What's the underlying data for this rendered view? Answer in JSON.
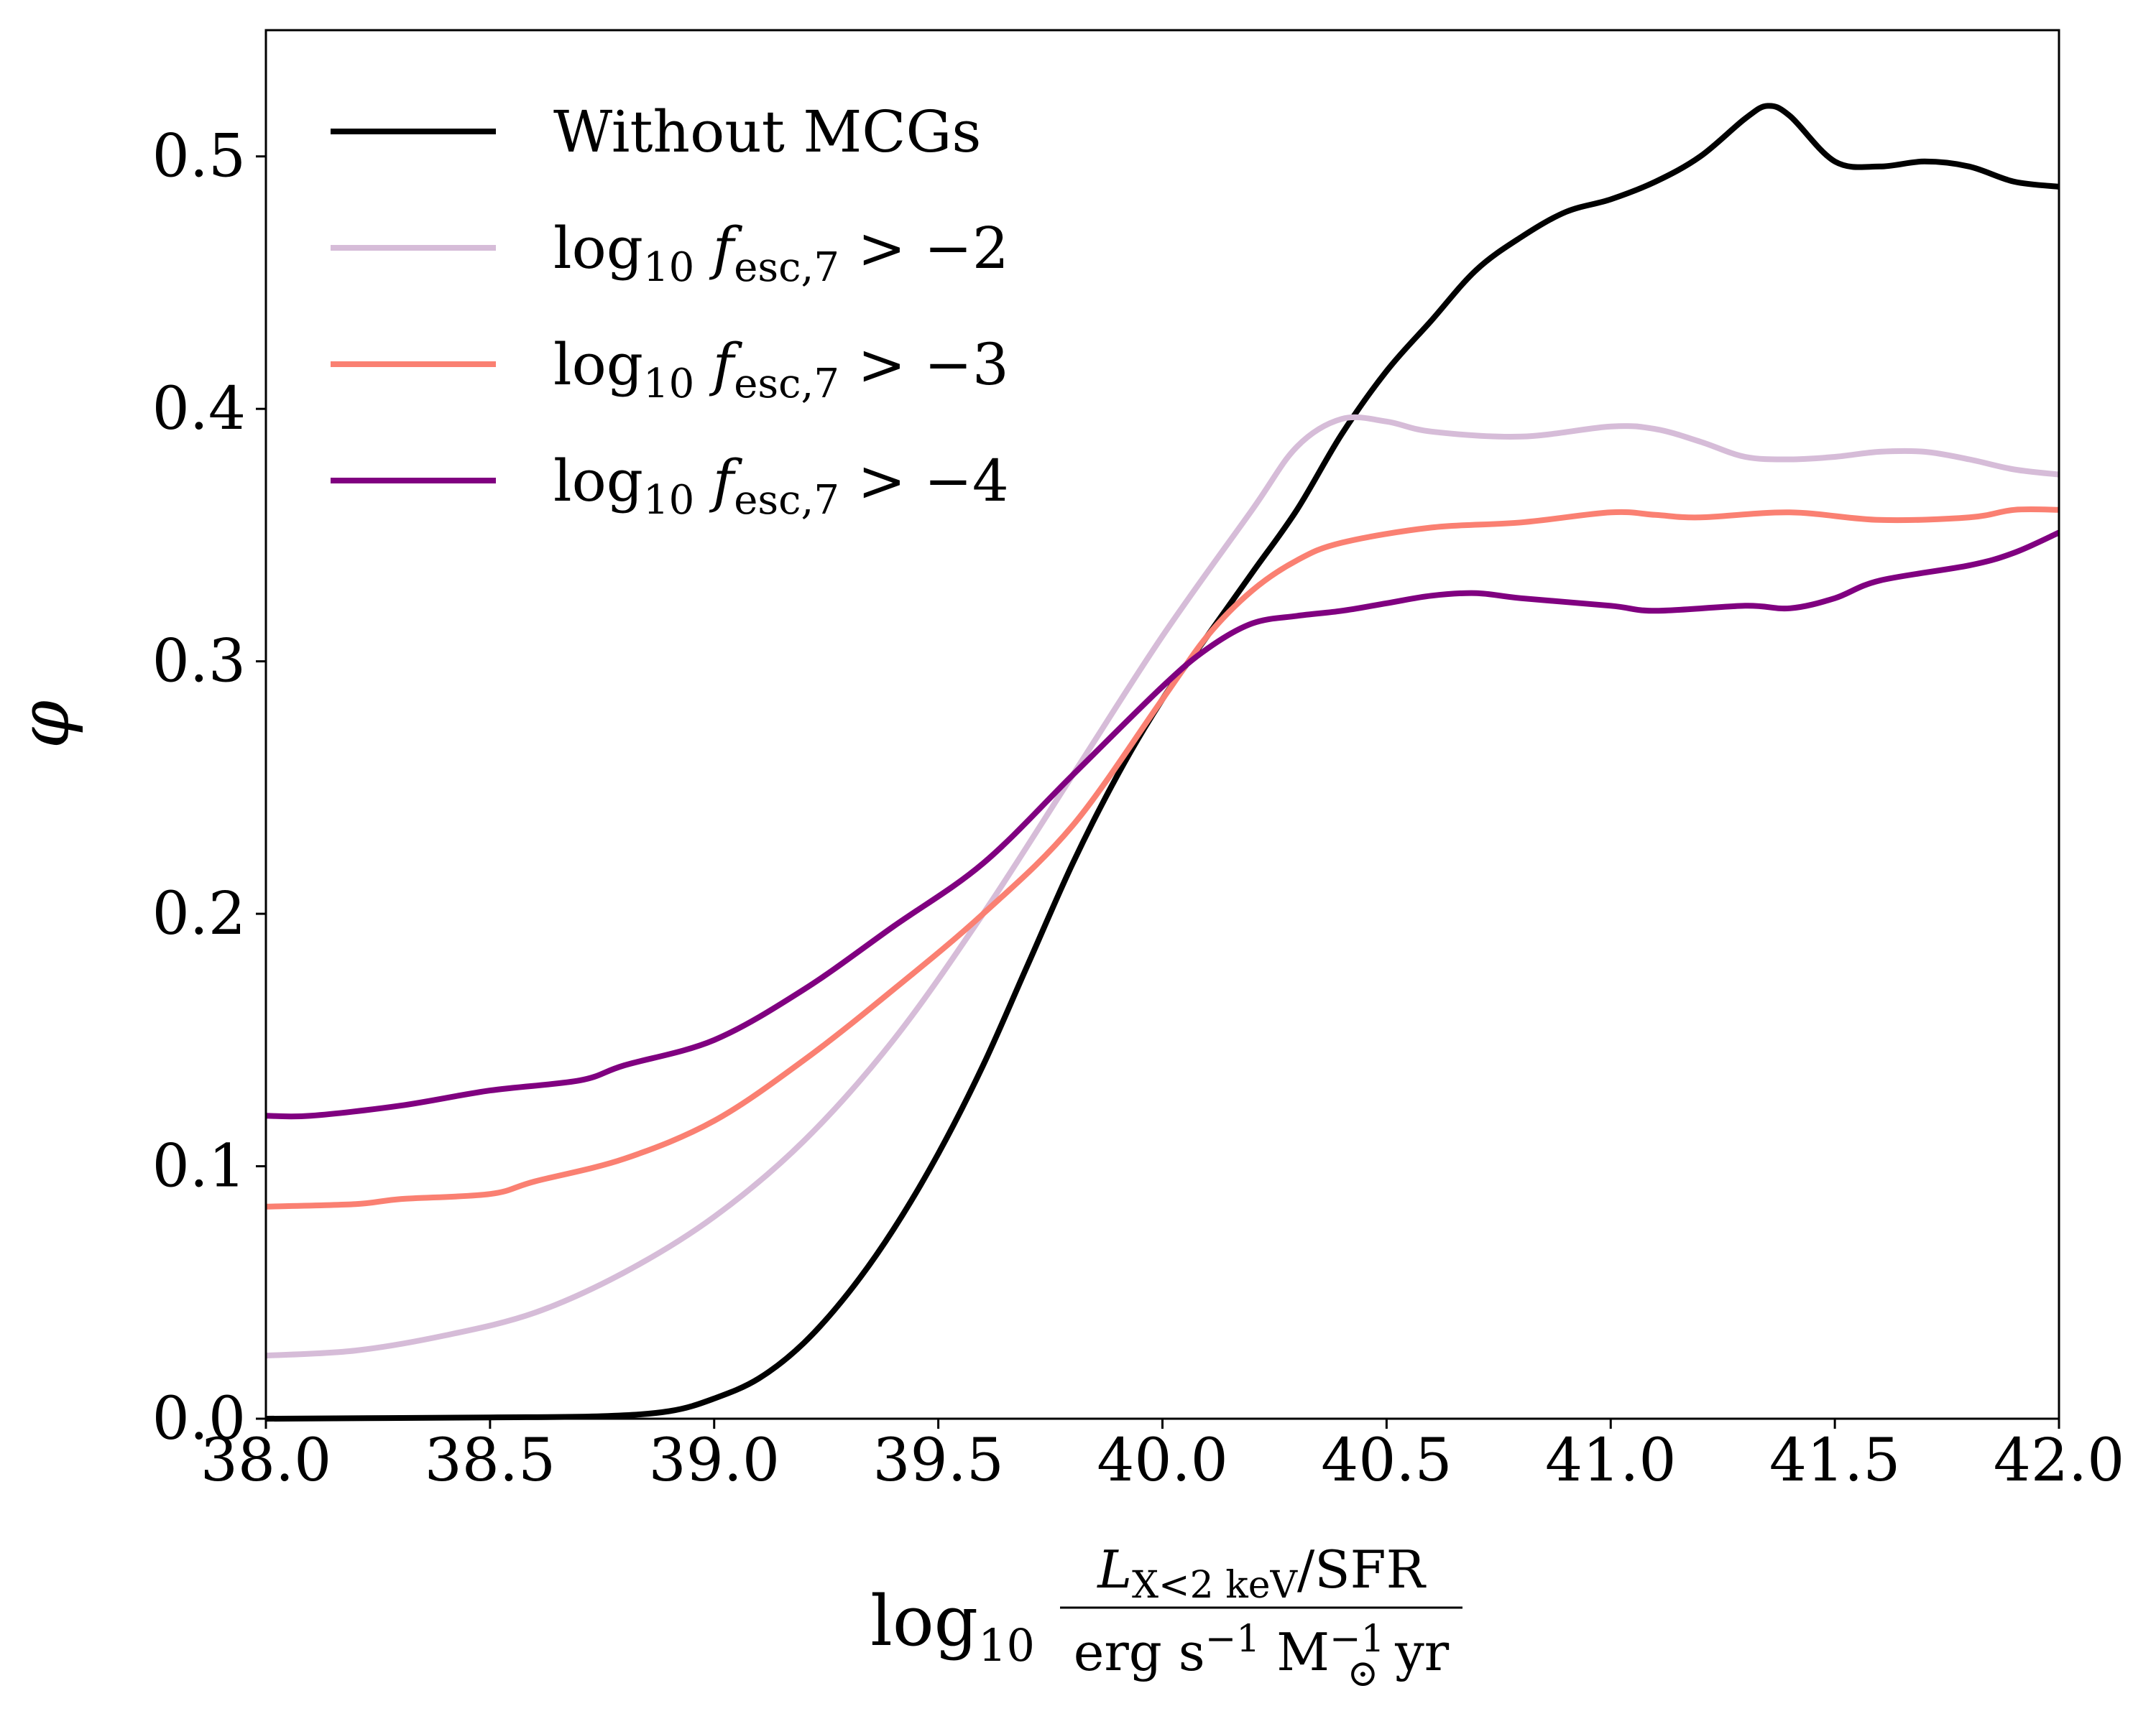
{
  "chart_data": {
    "type": "line",
    "xlabel": "log10 L_{X<2keV}/SFR / erg s^-1 M_⊙^-1 yr",
    "xlabel_parts": {
      "prefix": "log",
      "prefix_sub": "10",
      "numerator_main": "L",
      "numerator_sub": "X<2 keV",
      "numerator_rest": "/SFR",
      "denominator": "erg s",
      "denominator_sup1": "−1",
      "denominator_msun": " M",
      "denominator_sup2": "−1",
      "denominator_sub2": "⊙",
      "denominator_rest": " yr"
    },
    "ylabel": "φ",
    "xlim": [
      38.0,
      42.0
    ],
    "ylim": [
      0.0,
      0.55
    ],
    "x_ticks": [
      38.0,
      38.5,
      39.0,
      39.5,
      40.0,
      40.5,
      41.0,
      41.5,
      42.0
    ],
    "x_tick_labels": [
      "38.0",
      "38.5",
      "39.0",
      "39.5",
      "40.0",
      "40.5",
      "41.0",
      "41.5",
      "42.0"
    ],
    "y_ticks": [
      0.0,
      0.1,
      0.2,
      0.3,
      0.4,
      0.5
    ],
    "y_tick_labels": [
      "0.0",
      "0.1",
      "0.2",
      "0.3",
      "0.4",
      "0.5"
    ],
    "grid": false,
    "legend_position": "top-left",
    "series": [
      {
        "name": "Without MCGs",
        "name_parts": {
          "main": "Without MCGs"
        },
        "color": "#000000",
        "points": [
          [
            38.0,
            0.0
          ],
          [
            38.5,
            0.0005
          ],
          [
            38.75,
            0.001
          ],
          [
            38.9,
            0.003
          ],
          [
            39.0,
            0.008
          ],
          [
            39.1,
            0.016
          ],
          [
            39.2,
            0.03
          ],
          [
            39.3,
            0.05
          ],
          [
            39.4,
            0.075
          ],
          [
            39.5,
            0.105
          ],
          [
            39.6,
            0.14
          ],
          [
            39.7,
            0.18
          ],
          [
            39.8,
            0.22
          ],
          [
            39.9,
            0.255
          ],
          [
            40.0,
            0.285
          ],
          [
            40.1,
            0.31
          ],
          [
            40.2,
            0.335
          ],
          [
            40.3,
            0.36
          ],
          [
            40.4,
            0.39
          ],
          [
            40.5,
            0.415
          ],
          [
            40.6,
            0.435
          ],
          [
            40.7,
            0.455
          ],
          [
            40.8,
            0.468
          ],
          [
            40.9,
            0.478
          ],
          [
            41.0,
            0.483
          ],
          [
            41.1,
            0.49
          ],
          [
            41.2,
            0.5
          ],
          [
            41.3,
            0.515
          ],
          [
            41.35,
            0.52
          ],
          [
            41.4,
            0.516
          ],
          [
            41.5,
            0.498
          ],
          [
            41.6,
            0.496
          ],
          [
            41.7,
            0.498
          ],
          [
            41.8,
            0.496
          ],
          [
            41.9,
            0.49
          ],
          [
            42.0,
            0.488
          ]
        ]
      },
      {
        "name": "log10 f_esc,7 > −2",
        "name_parts": {
          "main": "log",
          "sub1": "10",
          "italic": " f",
          "sub2": "esc,7",
          "rest": " > −2"
        },
        "color": "#d6bcd8",
        "points": [
          [
            38.0,
            0.025
          ],
          [
            38.2,
            0.027
          ],
          [
            38.4,
            0.033
          ],
          [
            38.6,
            0.042
          ],
          [
            38.8,
            0.058
          ],
          [
            39.0,
            0.08
          ],
          [
            39.2,
            0.11
          ],
          [
            39.4,
            0.15
          ],
          [
            39.6,
            0.2
          ],
          [
            39.8,
            0.255
          ],
          [
            40.0,
            0.31
          ],
          [
            40.2,
            0.36
          ],
          [
            40.3,
            0.385
          ],
          [
            40.4,
            0.396
          ],
          [
            40.5,
            0.395
          ],
          [
            40.6,
            0.391
          ],
          [
            40.8,
            0.389
          ],
          [
            41.0,
            0.393
          ],
          [
            41.1,
            0.392
          ],
          [
            41.2,
            0.387
          ],
          [
            41.3,
            0.381
          ],
          [
            41.4,
            0.38
          ],
          [
            41.5,
            0.381
          ],
          [
            41.6,
            0.383
          ],
          [
            41.7,
            0.383
          ],
          [
            41.8,
            0.38
          ],
          [
            41.9,
            0.376
          ],
          [
            42.0,
            0.374
          ]
        ]
      },
      {
        "name": "log10 f_esc,7 > −3",
        "name_parts": {
          "main": "log",
          "sub1": "10",
          "italic": " f",
          "sub2": "esc,7",
          "rest": " > −3"
        },
        "color": "#fa8072",
        "points": [
          [
            38.0,
            0.084
          ],
          [
            38.2,
            0.085
          ],
          [
            38.3,
            0.087
          ],
          [
            38.5,
            0.089
          ],
          [
            38.6,
            0.094
          ],
          [
            38.8,
            0.103
          ],
          [
            39.0,
            0.118
          ],
          [
            39.2,
            0.142
          ],
          [
            39.4,
            0.17
          ],
          [
            39.6,
            0.2
          ],
          [
            39.8,
            0.235
          ],
          [
            40.0,
            0.285
          ],
          [
            40.1,
            0.31
          ],
          [
            40.2,
            0.328
          ],
          [
            40.3,
            0.34
          ],
          [
            40.4,
            0.347
          ],
          [
            40.6,
            0.353
          ],
          [
            40.8,
            0.355
          ],
          [
            41.0,
            0.359
          ],
          [
            41.1,
            0.358
          ],
          [
            41.2,
            0.357
          ],
          [
            41.4,
            0.359
          ],
          [
            41.6,
            0.356
          ],
          [
            41.8,
            0.357
          ],
          [
            41.9,
            0.36
          ],
          [
            42.0,
            0.36
          ]
        ]
      },
      {
        "name": "log10 f_esc,7 > −4",
        "name_parts": {
          "main": "log",
          "sub1": "10",
          "italic": " f",
          "sub2": "esc,7",
          "rest": " > −4"
        },
        "color": "#800080",
        "points": [
          [
            38.0,
            0.12
          ],
          [
            38.1,
            0.12
          ],
          [
            38.3,
            0.124
          ],
          [
            38.5,
            0.13
          ],
          [
            38.7,
            0.134
          ],
          [
            38.8,
            0.14
          ],
          [
            39.0,
            0.15
          ],
          [
            39.2,
            0.17
          ],
          [
            39.4,
            0.195
          ],
          [
            39.6,
            0.22
          ],
          [
            39.8,
            0.255
          ],
          [
            40.0,
            0.29
          ],
          [
            40.1,
            0.305
          ],
          [
            40.2,
            0.315
          ],
          [
            40.3,
            0.318
          ],
          [
            40.4,
            0.32
          ],
          [
            40.5,
            0.323
          ],
          [
            40.6,
            0.326
          ],
          [
            40.7,
            0.327
          ],
          [
            40.8,
            0.325
          ],
          [
            41.0,
            0.322
          ],
          [
            41.1,
            0.32
          ],
          [
            41.3,
            0.322
          ],
          [
            41.4,
            0.321
          ],
          [
            41.5,
            0.325
          ],
          [
            41.6,
            0.332
          ],
          [
            41.8,
            0.338
          ],
          [
            41.9,
            0.343
          ],
          [
            42.0,
            0.351
          ]
        ]
      }
    ]
  }
}
